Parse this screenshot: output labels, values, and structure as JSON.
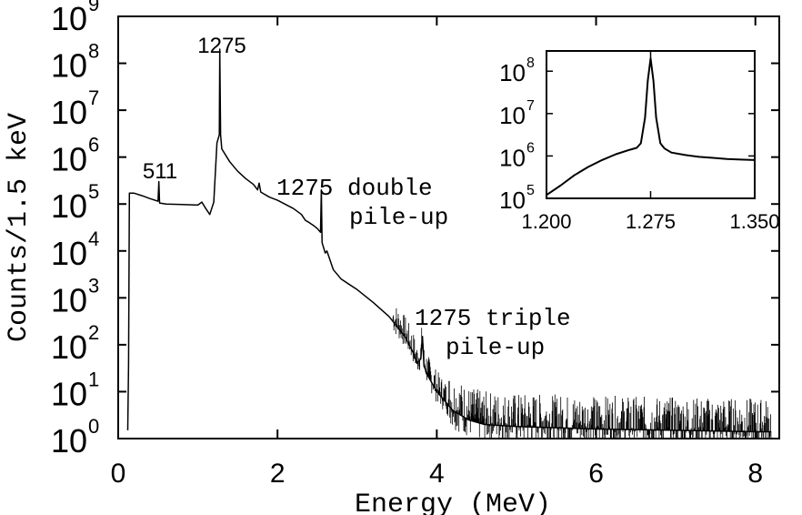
{
  "chart_data": [
    {
      "type": "line",
      "title": "",
      "xlabel": "Energy (MeV)",
      "ylabel": "Counts/1.5 keV",
      "xlim": [
        0,
        8.3
      ],
      "ylim": [
        1,
        1000000000
      ],
      "yscale": "log",
      "x_ticks": [
        0,
        2,
        4,
        6,
        8
      ],
      "x_tick_labels": [
        "0",
        "2",
        "4",
        "6",
        "8"
      ],
      "y_ticks": [
        1,
        10,
        100,
        1000,
        10000,
        100000,
        1000000,
        10000000,
        100000000,
        1000000000
      ],
      "y_tick_bases": [
        "10",
        "10",
        "10",
        "10",
        "10",
        "10",
        "10",
        "10",
        "10",
        "10"
      ],
      "y_tick_exponents": [
        "0",
        "1",
        "2",
        "3",
        "4",
        "5",
        "6",
        "7",
        "8",
        "9"
      ],
      "grid": false,
      "series": [
        {
          "color": "#000000",
          "points": [
            [
              0.12,
              1.5
            ],
            [
              0.13,
              40
            ],
            [
              0.14,
              170000
            ],
            [
              0.2,
              170000
            ],
            [
              0.3,
              150000
            ],
            [
              0.4,
              130000
            ],
            [
              0.5,
              115000
            ],
            [
              0.51,
              300000
            ],
            [
              0.52,
              105000
            ],
            [
              0.6,
              100000
            ],
            [
              0.8,
              98000
            ],
            [
              1.0,
              95000
            ],
            [
              1.05,
              110000
            ],
            [
              1.1,
              80000
            ],
            [
              1.15,
              60000
            ],
            [
              1.2,
              110000
            ],
            [
              1.24,
              2000000
            ],
            [
              1.27,
              3000000
            ],
            [
              1.275,
              200000000
            ],
            [
              1.285,
              3000000
            ],
            [
              1.3,
              1500000
            ],
            [
              1.4,
              800000
            ],
            [
              1.5,
              500000
            ],
            [
              1.6,
              350000
            ],
            [
              1.7,
              260000
            ],
            [
              1.75,
              200000
            ],
            [
              1.77,
              280000
            ],
            [
              1.79,
              180000
            ],
            [
              1.9,
              140000
            ],
            [
              2.0,
              120000
            ],
            [
              2.2,
              80000
            ],
            [
              2.3,
              60000
            ],
            [
              2.35,
              45000
            ],
            [
              2.4,
              40000
            ],
            [
              2.45,
              35000
            ],
            [
              2.5,
              30000
            ],
            [
              2.54,
              25000
            ],
            [
              2.55,
              200000
            ],
            [
              2.56,
              15000
            ],
            [
              2.6,
              9000
            ],
            [
              2.62,
              10000
            ],
            [
              2.7,
              4000
            ],
            [
              2.8,
              2500
            ],
            [
              3.0,
              1500
            ],
            [
              3.2,
              800
            ],
            [
              3.4,
              400
            ],
            [
              3.6,
              150
            ],
            [
              3.7,
              70
            ],
            [
              3.75,
              40
            ],
            [
              3.8,
              50
            ],
            [
              3.82,
              150
            ],
            [
              3.84,
              35
            ],
            [
              3.9,
              20
            ],
            [
              4.0,
              10
            ],
            [
              4.2,
              4
            ],
            [
              4.4,
              2.5
            ],
            [
              4.6,
              2
            ],
            [
              5.0,
              1.8
            ],
            [
              6.0,
              1.6
            ],
            [
              7.0,
              1.5
            ],
            [
              8.0,
              1.4
            ],
            [
              8.2,
              1.4
            ]
          ]
        }
      ],
      "annotations": [
        "511",
        "1275",
        "1275 double",
        "pile-up",
        "1275 triple",
        "pile-up"
      ]
    },
    {
      "type": "line",
      "title": "",
      "xlabel": "",
      "ylabel": "",
      "xlim": [
        1.2,
        1.35
      ],
      "ylim": [
        100000,
        300000000
      ],
      "yscale": "log",
      "x_ticks": [
        1.2,
        1.275,
        1.35
      ],
      "x_tick_labels": [
        "1.200",
        "1.275",
        "1.350"
      ],
      "y_ticks": [
        100000,
        1000000,
        10000000,
        100000000
      ],
      "y_tick_bases": [
        "10",
        "10",
        "10",
        "10"
      ],
      "y_tick_exponents": [
        "5",
        "6",
        "7",
        "8"
      ],
      "grid": false,
      "series": [
        {
          "color": "#000000",
          "points": [
            [
              1.2,
              120000
            ],
            [
              1.21,
              200000
            ],
            [
              1.22,
              350000
            ],
            [
              1.23,
              550000
            ],
            [
              1.24,
              800000
            ],
            [
              1.25,
              1100000
            ],
            [
              1.26,
              1400000
            ],
            [
              1.265,
              1550000
            ],
            [
              1.268,
              2000000
            ],
            [
              1.271,
              8000000
            ],
            [
              1.273,
              60000000
            ],
            [
              1.275,
              200000000
            ],
            [
              1.277,
              60000000
            ],
            [
              1.279,
              8000000
            ],
            [
              1.282,
              2000000
            ],
            [
              1.285,
              1500000
            ],
            [
              1.29,
              1200000
            ],
            [
              1.3,
              1050000
            ],
            [
              1.31,
              950000
            ],
            [
              1.32,
              900000
            ],
            [
              1.33,
              850000
            ],
            [
              1.34,
              820000
            ],
            [
              1.35,
              800000
            ]
          ]
        }
      ]
    }
  ]
}
